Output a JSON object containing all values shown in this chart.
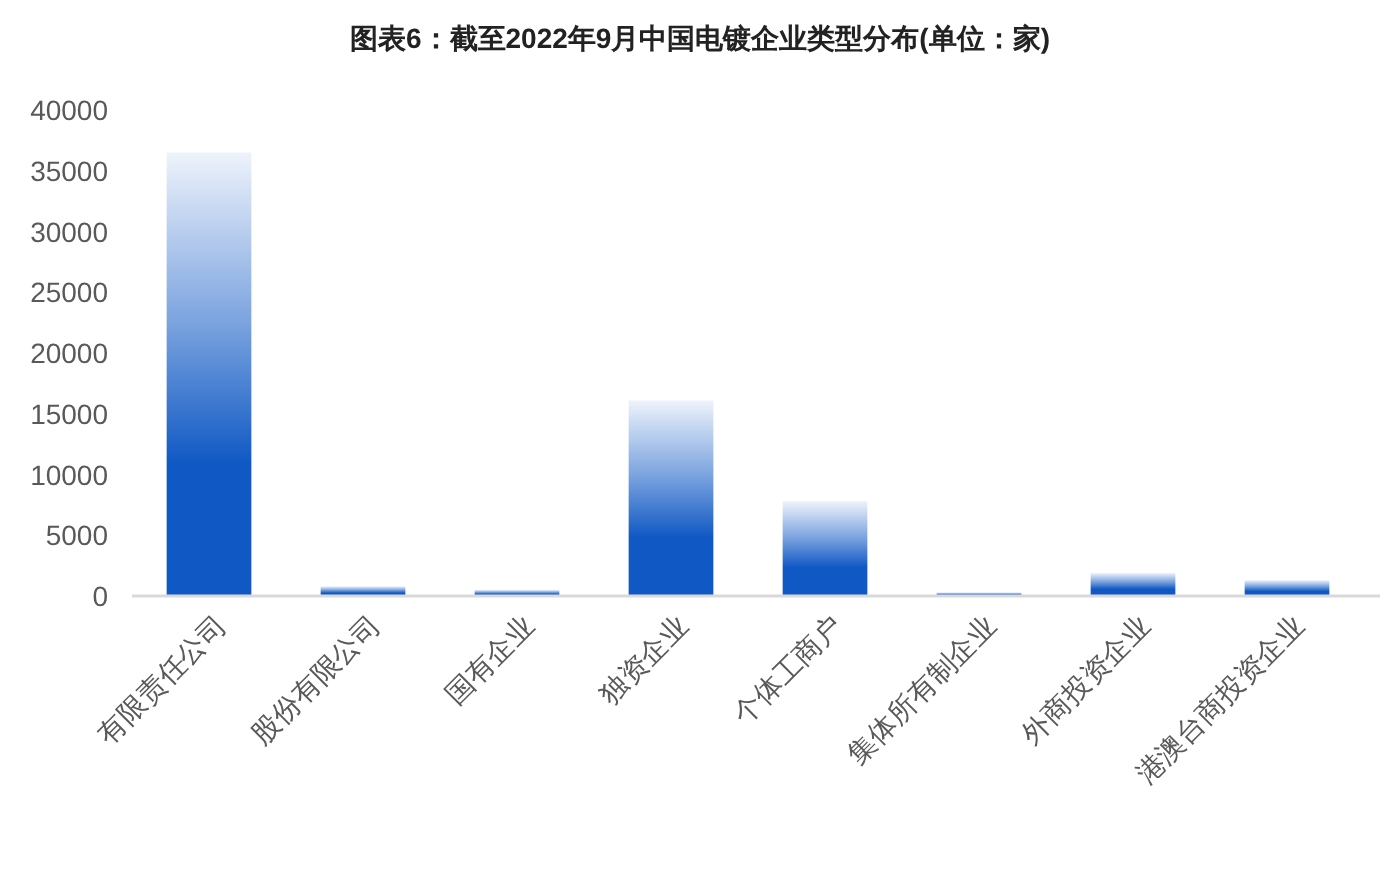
{
  "chart_data": {
    "type": "bar",
    "title": "图表6：截至2022年9月中国电镀企业类型分布(单位：家)",
    "categories": [
      "有限责任公司",
      "股份有限公司",
      "国有企业",
      "独资企业",
      "个体工商户",
      "集体所有制企业",
      "外商投资企业",
      "港澳台商投资企业"
    ],
    "values": [
      36500,
      800,
      500,
      16100,
      7800,
      300,
      1900,
      1300
    ],
    "color": "#1059c4",
    "ylim": [
      0,
      40000
    ],
    "yticks": [
      0,
      5000,
      10000,
      15000,
      20000,
      25000,
      30000,
      35000,
      40000
    ]
  }
}
